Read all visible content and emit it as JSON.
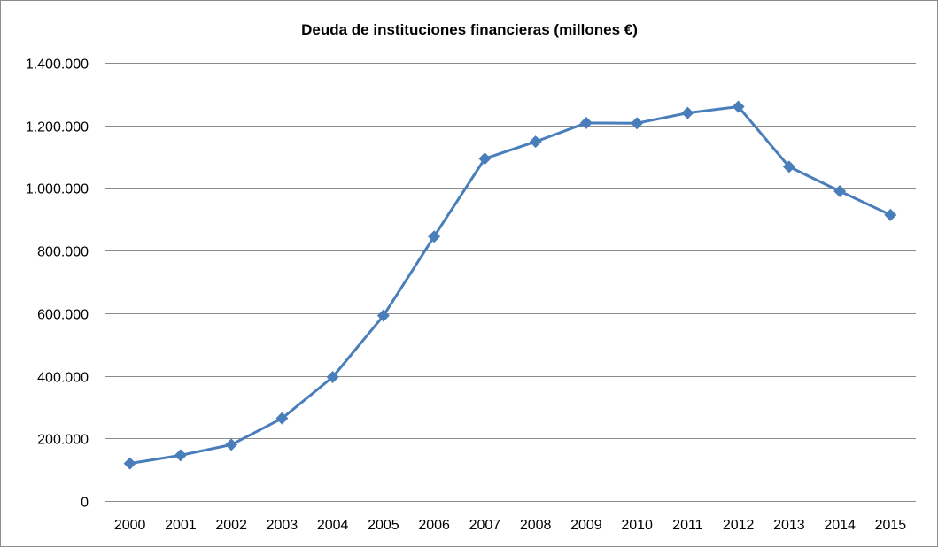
{
  "chart_data": {
    "type": "line",
    "title": "Deuda de instituciones financieras (millones €)",
    "xlabel": "",
    "ylabel": "",
    "categories": [
      "2000",
      "2001",
      "2002",
      "2003",
      "2004",
      "2005",
      "2006",
      "2007",
      "2008",
      "2009",
      "2010",
      "2011",
      "2012",
      "2013",
      "2014",
      "2015"
    ],
    "series": [
      {
        "values": [
          120000,
          146000,
          180000,
          264000,
          396000,
          592000,
          845000,
          1094000,
          1148000,
          1208000,
          1207000,
          1240000,
          1260000,
          1068000,
          990000,
          914000
        ],
        "color": "#4a7ebb",
        "marker": "diamond"
      }
    ],
    "ylim": [
      0,
      1400000
    ],
    "yticks": [
      0,
      200000,
      400000,
      600000,
      800000,
      1000000,
      1200000,
      1400000
    ],
    "ytick_labels": [
      "0",
      "200.000",
      "400.000",
      "600.000",
      "800.000",
      "1.000.000",
      "1.200.000",
      "1.400.000"
    ],
    "grid": true,
    "legend": "none"
  }
}
